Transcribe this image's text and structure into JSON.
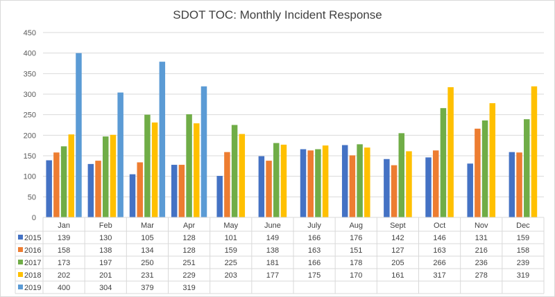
{
  "chart_data": {
    "type": "bar",
    "title": "SDOT TOC: Monthly Incident Response",
    "categories": [
      "Jan",
      "Feb",
      "Mar",
      "Apr",
      "May",
      "June",
      "July",
      "Aug",
      "Sept",
      "Oct",
      "Nov",
      "Dec"
    ],
    "ylim": [
      0,
      450
    ],
    "yticks": [
      0,
      50,
      100,
      150,
      200,
      250,
      300,
      350,
      400,
      450
    ],
    "grid": true,
    "legend": "data-table",
    "series": [
      {
        "name": "2015",
        "color": "#4472C4",
        "values": [
          139,
          130,
          105,
          128,
          101,
          149,
          166,
          176,
          142,
          146,
          131,
          159
        ]
      },
      {
        "name": "2016",
        "color": "#ED7D31",
        "values": [
          158,
          138,
          134,
          128,
          159,
          138,
          163,
          151,
          127,
          163,
          216,
          158
        ]
      },
      {
        "name": "2017",
        "color": "#70AD47",
        "values": [
          173,
          197,
          250,
          251,
          225,
          181,
          166,
          178,
          205,
          266,
          236,
          239
        ]
      },
      {
        "name": "2018",
        "color": "#FFC000",
        "values": [
          202,
          201,
          231,
          229,
          203,
          177,
          175,
          170,
          161,
          317,
          278,
          319
        ]
      },
      {
        "name": "2019",
        "color": "#5B9BD5",
        "values": [
          400,
          304,
          379,
          319,
          null,
          null,
          null,
          null,
          null,
          null,
          null,
          null
        ]
      }
    ]
  }
}
